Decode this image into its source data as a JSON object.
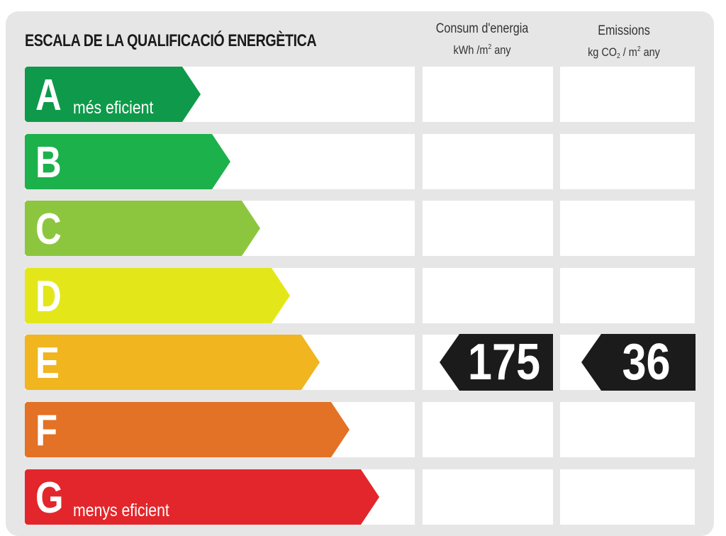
{
  "header": {
    "title": "ESCALA DE LA QUALIFICACIÓ ENERGÈTICA",
    "energy_label": "Consum d'energia",
    "energy_unit_prefix": "kWh /m",
    "energy_unit_exp": "2",
    "energy_unit_suffix": " any",
    "emissions_label": "Emissions",
    "emissions_unit_prefix": "kg CO",
    "emissions_unit_sub": "2",
    "emissions_unit_mid": " / m",
    "emissions_unit_exp": "2",
    "emissions_unit_suffix": " any"
  },
  "ratings": [
    {
      "letter": "A",
      "label": "més eficient",
      "color": "#0e9a4a"
    },
    {
      "letter": "B",
      "label": "",
      "color": "#1cb14b"
    },
    {
      "letter": "C",
      "label": "",
      "color": "#8cc63f"
    },
    {
      "letter": "D",
      "label": "",
      "color": "#e3e71a"
    },
    {
      "letter": "E",
      "label": "",
      "color": "#f0b51f"
    },
    {
      "letter": "F",
      "label": "",
      "color": "#e37126"
    },
    {
      "letter": "G",
      "label": "menys eficient",
      "color": "#e2262b"
    }
  ],
  "current": {
    "rating": "E",
    "energy_value": "175",
    "emissions_value": "36"
  },
  "colors": {
    "background": "#e6e6e6",
    "badge": "#1b1b1b"
  }
}
